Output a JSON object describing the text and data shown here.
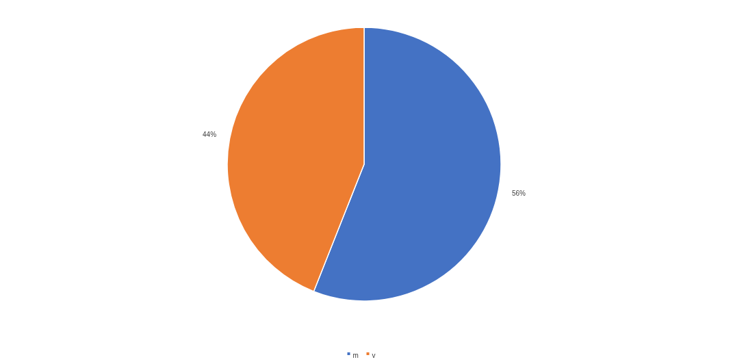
{
  "chart_data": {
    "type": "pie",
    "categories": [
      "m",
      "v"
    ],
    "values": [
      56,
      44
    ],
    "colors": [
      "#4472c4",
      "#ed7d31"
    ],
    "value_labels": [
      "56%",
      "44%"
    ],
    "legend": "bottom"
  }
}
